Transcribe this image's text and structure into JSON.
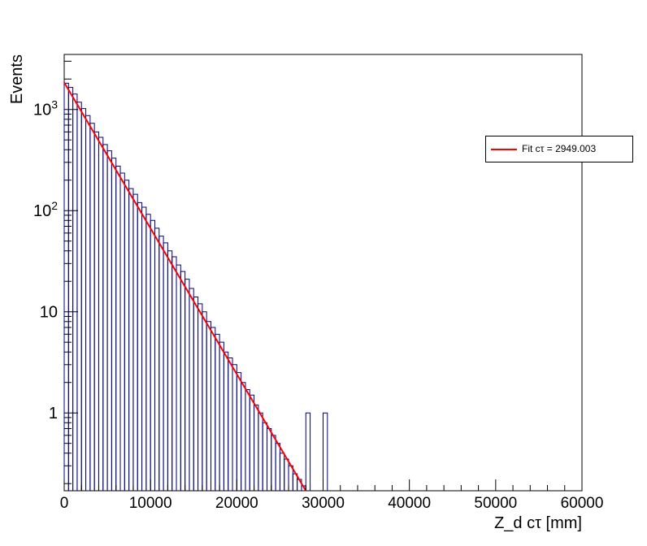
{
  "chart_data": {
    "type": "histogram",
    "title": "",
    "xlabel": "Z_d cτ [mm]",
    "ylabel": "Events",
    "xlim": [
      0,
      60000
    ],
    "ylim": [
      0.17,
      3500
    ],
    "yscale": "log",
    "grid": false,
    "legend_placement": "right",
    "x_ticks": [
      "0",
      "10000",
      "20000",
      "30000",
      "40000",
      "50000",
      "60000"
    ],
    "y_ticks": [
      "1",
      "10",
      "10^2",
      "10^3"
    ],
    "bin_width": 500,
    "histogram": {
      "color": "#000080",
      "bins": [
        {
          "x": 0,
          "y": 1820
        },
        {
          "x": 500,
          "y": 1650
        },
        {
          "x": 1000,
          "y": 1420
        },
        {
          "x": 1500,
          "y": 1180
        },
        {
          "x": 2000,
          "y": 1020
        },
        {
          "x": 2500,
          "y": 870
        },
        {
          "x": 3000,
          "y": 730
        },
        {
          "x": 3500,
          "y": 600
        },
        {
          "x": 4000,
          "y": 530
        },
        {
          "x": 4500,
          "y": 450
        },
        {
          "x": 5000,
          "y": 390
        },
        {
          "x": 5500,
          "y": 330
        },
        {
          "x": 6000,
          "y": 275
        },
        {
          "x": 6500,
          "y": 235
        },
        {
          "x": 7000,
          "y": 200
        },
        {
          "x": 7500,
          "y": 165
        },
        {
          "x": 8000,
          "y": 145
        },
        {
          "x": 8500,
          "y": 120
        },
        {
          "x": 9000,
          "y": 108
        },
        {
          "x": 9500,
          "y": 92
        },
        {
          "x": 10000,
          "y": 80
        },
        {
          "x": 10500,
          "y": 67
        },
        {
          "x": 11000,
          "y": 56
        },
        {
          "x": 11500,
          "y": 48
        },
        {
          "x": 12000,
          "y": 40
        },
        {
          "x": 12500,
          "y": 35
        },
        {
          "x": 13000,
          "y": 29
        },
        {
          "x": 13500,
          "y": 25
        },
        {
          "x": 14000,
          "y": 21
        },
        {
          "x": 14500,
          "y": 17
        },
        {
          "x": 15000,
          "y": 14
        },
        {
          "x": 15500,
          "y": 12
        },
        {
          "x": 16000,
          "y": 10
        },
        {
          "x": 16500,
          "y": 8
        },
        {
          "x": 17000,
          "y": 7
        },
        {
          "x": 17500,
          "y": 6
        },
        {
          "x": 18000,
          "y": 5
        },
        {
          "x": 18500,
          "y": 4
        },
        {
          "x": 19000,
          "y": 3.5
        },
        {
          "x": 19500,
          "y": 3
        },
        {
          "x": 20000,
          "y": 2.5
        },
        {
          "x": 20500,
          "y": 2
        },
        {
          "x": 21000,
          "y": 1.7
        },
        {
          "x": 21500,
          "y": 1.5
        },
        {
          "x": 22000,
          "y": 1.2
        },
        {
          "x": 22500,
          "y": 1
        },
        {
          "x": 23000,
          "y": 0.8
        },
        {
          "x": 23500,
          "y": 0.7
        },
        {
          "x": 24000,
          "y": 0.6
        },
        {
          "x": 24500,
          "y": 0.5
        },
        {
          "x": 25000,
          "y": 0.4
        },
        {
          "x": 25500,
          "y": 0.35
        },
        {
          "x": 26000,
          "y": 0.3
        },
        {
          "x": 26500,
          "y": 0.25
        },
        {
          "x": 27000,
          "y": 0.22
        },
        {
          "x": 27500,
          "y": 0.19
        },
        {
          "x": 28000,
          "y": 1
        },
        {
          "x": 30000,
          "y": 1
        }
      ]
    },
    "fit": {
      "name": "Fit cτ = 2949.003",
      "color": "#ff0000",
      "x": [
        0,
        28000
      ],
      "y": [
        1850,
        0.16
      ]
    }
  }
}
